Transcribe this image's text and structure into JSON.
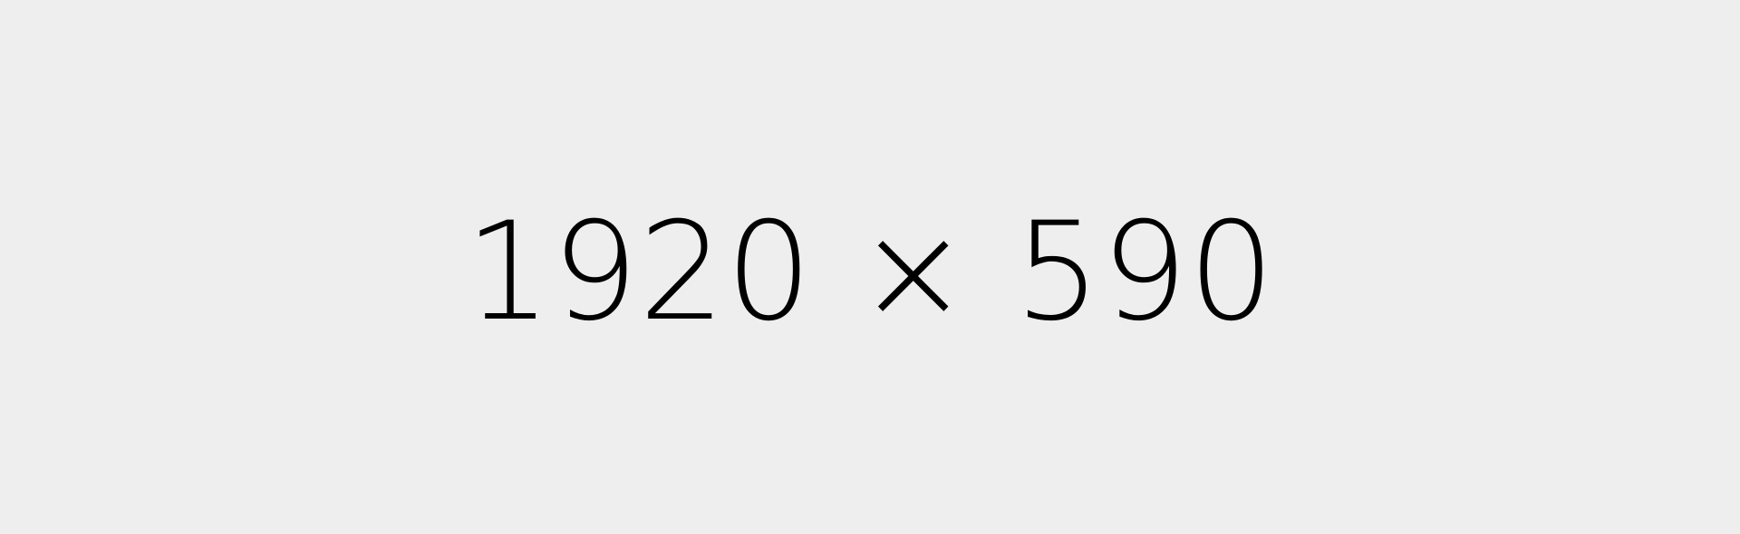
{
  "placeholder": {
    "label": "1920 × 590",
    "background_color": "#eeeeee",
    "text_color": "#000000"
  }
}
